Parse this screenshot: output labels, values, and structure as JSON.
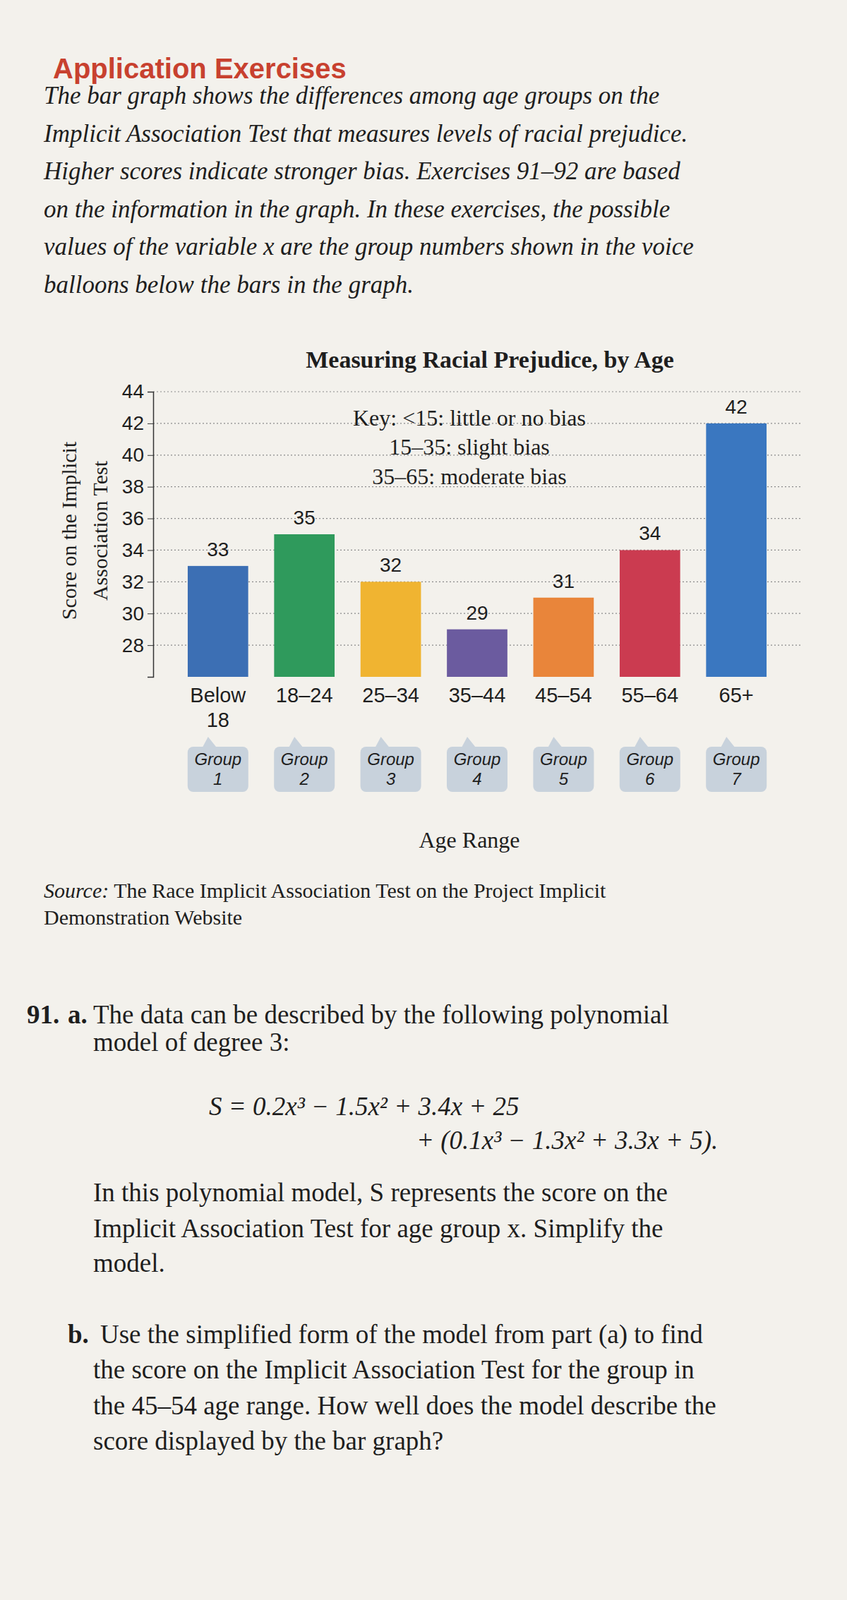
{
  "header": {
    "title": "Application Exercises"
  },
  "intro": [
    "The bar graph shows the differences among age groups on the",
    "Implicit Association Test that measures levels of racial prejudice.",
    "Higher scores indicate stronger bias. Exercises 91–92 are based",
    "on the information in the graph. In these exercises, the possible",
    "values of the variable x are the group numbers shown in the voice",
    "balloons below the bars in the graph."
  ],
  "chart_data": {
    "type": "bar",
    "title": "Measuring Racial Prejudice, by Age",
    "annotations": [
      "Key: <15: little or no bias",
      "15–35: slight bias",
      "35–65: moderate bias"
    ],
    "categories": [
      "Below 18",
      "18–24",
      "25–34",
      "35–44",
      "45–54",
      "55–64",
      "65+"
    ],
    "group_labels": [
      "Group 1",
      "Group 2",
      "Group 3",
      "Group 4",
      "Group 5",
      "Group 6",
      "Group 7"
    ],
    "values": [
      33,
      35,
      32,
      29,
      31,
      34,
      42
    ],
    "colors": [
      "#3c6fb4",
      "#2f9a5c",
      "#f0b431",
      "#6b5b9f",
      "#e9853a",
      "#cb3b50",
      "#3a77c0"
    ],
    "xlabel": "Age Range",
    "ylabel": [
      "Score on the Implicit",
      "Association Test"
    ],
    "ylim": [
      26,
      44
    ],
    "yticks": [
      28,
      30,
      32,
      34,
      36,
      38,
      40,
      42,
      44
    ],
    "grid": true,
    "data_labels": true
  },
  "source": {
    "label": "Source:",
    "lines": [
      "The Race Implicit Association Test on the Project Implicit",
      "Demonstration Website"
    ]
  },
  "exercise": {
    "number": "91.",
    "a_label": "a.",
    "a_lines": [
      "The data can be described by the following polynomial",
      "model of degree 3:"
    ],
    "formula": [
      "S = 0.2x³ − 1.5x² + 3.4x + 25",
      "+ (0.1x³ − 1.3x² + 3.3x + 5)."
    ],
    "a_more": [
      "In this polynomial model, S represents the score on the",
      "Implicit Association Test for age group x. Simplify the",
      "model."
    ],
    "b_label": "b.",
    "b_lines": [
      "Use the simplified form of the model from part (a) to find",
      "the score on the Implicit Association Test for the group in",
      "the 45–54 age range. How well does the model describe the",
      "score displayed by the bar graph?"
    ]
  }
}
